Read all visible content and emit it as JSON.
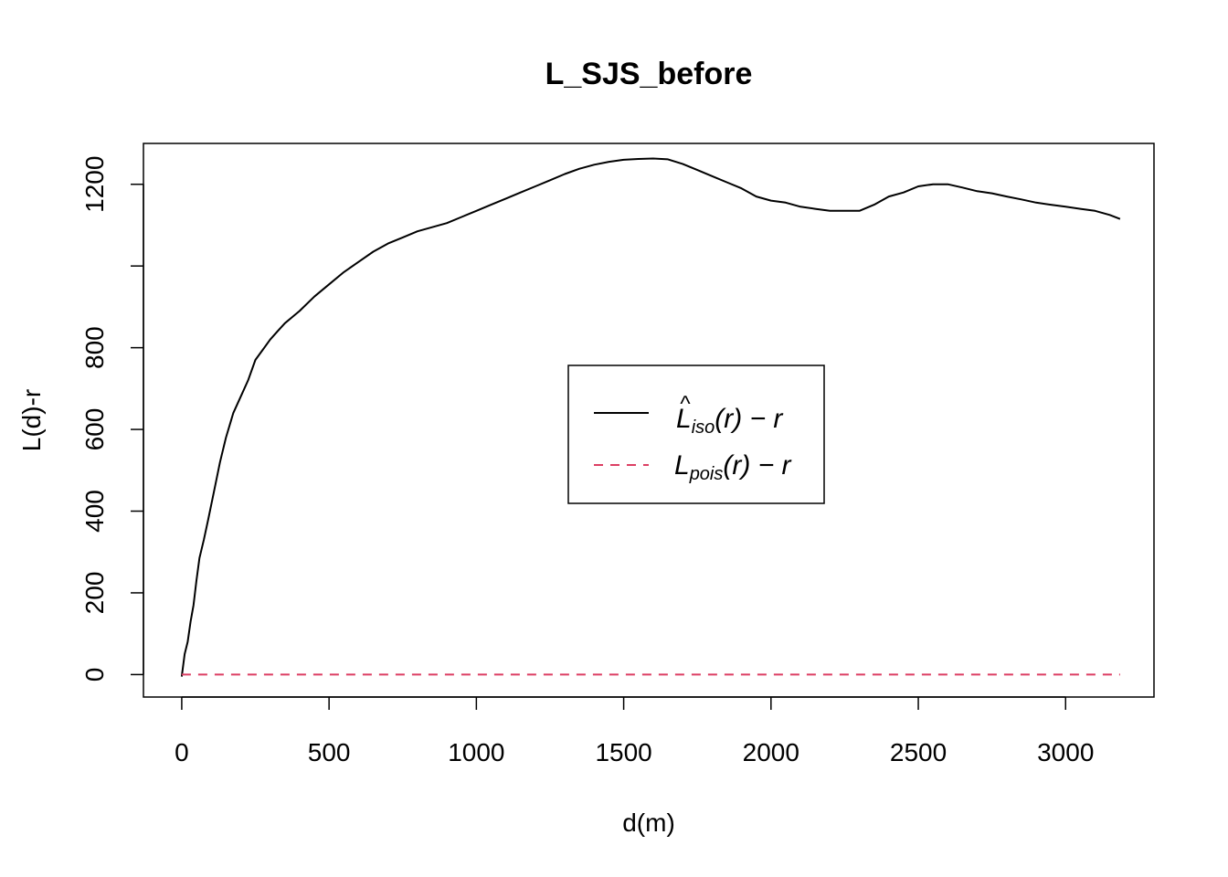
{
  "chart_data": {
    "type": "line",
    "title": "L_SJS_before",
    "xlabel": "d(m)",
    "ylabel": "L(d)-r",
    "xlim": [
      -130,
      3300
    ],
    "ylim": [
      -55,
      1300
    ],
    "x_ticks": [
      0,
      500,
      1000,
      1500,
      2000,
      2500,
      3000
    ],
    "y_ticks": [
      0,
      200,
      400,
      600,
      800,
      1000,
      1200
    ],
    "y_tick_labels": [
      "0",
      "200",
      "400",
      "600",
      "800",
      "",
      "1200"
    ],
    "grid": false,
    "legend_position": "center",
    "series": [
      {
        "id": "L_iso",
        "color": "#000000",
        "dash": "solid",
        "legend": {
          "main": "L",
          "hat": "^",
          "sub": "iso",
          "suffix": "(r) − r"
        },
        "x": [
          0,
          10,
          20,
          30,
          40,
          50,
          60,
          75,
          90,
          110,
          130,
          150,
          175,
          200,
          225,
          250,
          275,
          300,
          325,
          350,
          375,
          400,
          450,
          500,
          550,
          600,
          650,
          700,
          750,
          800,
          850,
          900,
          950,
          1000,
          1050,
          1100,
          1150,
          1200,
          1250,
          1300,
          1350,
          1400,
          1450,
          1500,
          1550,
          1600,
          1650,
          1700,
          1750,
          1800,
          1850,
          1900,
          1950,
          2000,
          2050,
          2100,
          2150,
          2200,
          2250,
          2300,
          2350,
          2400,
          2450,
          2500,
          2550,
          2600,
          2650,
          2700,
          2750,
          2800,
          2850,
          2900,
          2950,
          3000,
          3050,
          3100,
          3150,
          3185
        ],
        "y": [
          -5,
          50,
          80,
          130,
          170,
          230,
          285,
          330,
          380,
          450,
          520,
          580,
          640,
          680,
          720,
          770,
          795,
          820,
          840,
          860,
          875,
          890,
          925,
          955,
          985,
          1010,
          1035,
          1055,
          1070,
          1085,
          1095,
          1105,
          1120,
          1135,
          1150,
          1165,
          1180,
          1195,
          1210,
          1225,
          1238,
          1248,
          1255,
          1260,
          1262,
          1263,
          1261,
          1250,
          1235,
          1220,
          1205,
          1190,
          1170,
          1160,
          1155,
          1145,
          1140,
          1135,
          1135,
          1135,
          1150,
          1170,
          1180,
          1195,
          1200,
          1200,
          1192,
          1183,
          1178,
          1170,
          1163,
          1155,
          1150,
          1145,
          1140,
          1135,
          1125,
          1115
        ]
      },
      {
        "id": "L_pois",
        "color": "#dc3f63",
        "dash": "dashed",
        "legend": {
          "main": "L",
          "sub": "pois",
          "suffix": "(r) − r"
        },
        "x": [
          0,
          3185
        ],
        "y": [
          0,
          0
        ]
      }
    ]
  }
}
